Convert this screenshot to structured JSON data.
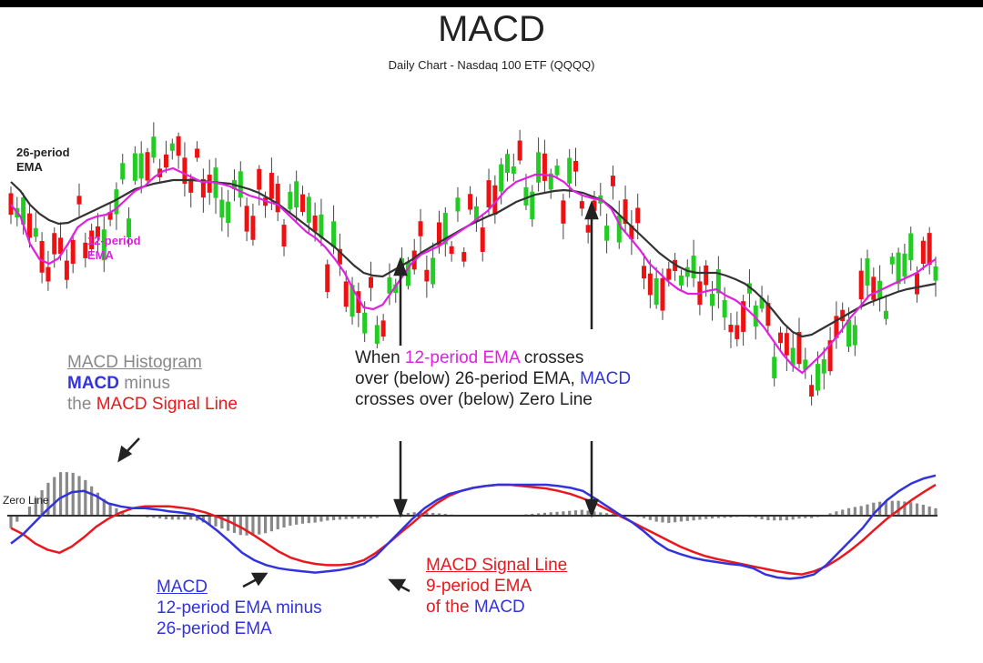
{
  "title": "MACD",
  "subtitle": "Daily Chart - Nasdaq 100 ETF (QQQQ)",
  "labels": {
    "ema26": [
      "26-period",
      "EMA"
    ],
    "ema12": [
      "12-period",
      "EMA"
    ],
    "zero_line": "Zero Line",
    "histogram_title": "MACD Histogram",
    "histogram_macd": "MACD",
    "histogram_minus": " minus",
    "histogram_the": "the ",
    "histogram_signal": "MACD Signal Line",
    "cross_when": "When ",
    "cross_12": "12-period EMA",
    "cross_rest1": " crosses",
    "cross_line2_a": "over (below) 26-period EMA,",
    "cross_line2_b": " MACD",
    "cross_line3": "crosses over (below) Zero Line",
    "macd_title": "MACD",
    "macd_line1": "12-period EMA minus",
    "macd_line2": "26-period EMA",
    "signal_title": "MACD Signal Line",
    "signal_line1": "9-period EMA",
    "signal_line2a": "of the ",
    "signal_line2b": "MACD"
  },
  "colors": {
    "up_candle": "#22cc22",
    "down_candle": "#ee1111",
    "ema12": "#e020e0",
    "ema26": "#333333",
    "macd": "#3333dd",
    "signal": "#e8181e",
    "histogram": "#888888"
  },
  "chart_data": [
    {
      "type": "candlestick",
      "series": [
        {
          "name": "12-period EMA",
          "y": [
            225,
            238,
            268,
            285,
            290,
            284,
            268,
            250,
            242,
            238,
            236,
            230,
            220,
            210,
            205,
            195,
            188,
            185,
            190,
            195,
            200,
            200,
            202,
            205,
            210,
            215,
            218,
            222,
            225,
            235,
            245,
            255,
            262,
            272,
            285,
            300,
            320,
            338,
            340,
            335,
            320,
            305,
            290,
            280,
            275,
            270,
            262,
            255,
            248,
            240,
            232,
            220,
            208,
            200,
            196,
            192,
            192,
            194,
            200,
            210,
            215,
            218,
            220,
            230,
            250,
            262,
            275,
            290,
            300,
            310,
            318,
            323,
            323,
            320,
            318,
            325,
            330,
            338,
            348,
            360,
            375,
            390,
            402,
            410,
            400,
            390,
            378,
            365,
            350,
            338,
            325,
            320,
            315,
            310,
            305,
            300,
            292,
            285
          ]
        },
        {
          "name": "26-period EMA",
          "y": [
            200,
            210,
            225,
            235,
            242,
            246,
            245,
            240,
            235,
            230,
            225,
            220,
            214,
            208,
            205,
            202,
            200,
            198,
            198,
            198,
            199,
            200,
            201,
            202,
            205,
            208,
            212,
            218,
            224,
            232,
            240,
            248,
            256,
            264,
            272,
            282,
            292,
            300,
            303,
            304,
            298,
            292,
            286,
            278,
            272,
            266,
            260,
            254,
            248,
            243,
            238,
            234,
            228,
            222,
            218,
            214,
            212,
            210,
            209,
            210,
            212,
            216,
            220,
            228,
            238,
            248,
            258,
            268,
            278,
            286,
            293,
            298,
            300,
            300,
            300,
            303,
            307,
            312,
            320,
            330,
            342,
            355,
            365,
            370,
            368,
            362,
            356,
            350,
            344,
            338,
            333,
            329,
            325,
            321,
            318,
            316,
            314,
            312
          ]
        }
      ],
      "ylim": [
        100,
        480
      ]
    },
    {
      "type": "line",
      "series": [
        {
          "name": "MACD",
          "y": [
            -45,
            -30,
            -10,
            10,
            28,
            38,
            40,
            32,
            20,
            15,
            12,
            12,
            10,
            7,
            5,
            2,
            -10,
            -25,
            -42,
            -60,
            -72,
            -80,
            -85,
            -88,
            -90,
            -92,
            -90,
            -88,
            -84,
            -78,
            -65,
            -45,
            -25,
            -5,
            12,
            25,
            35,
            40,
            45,
            48,
            50,
            50,
            50,
            50,
            50,
            48,
            45,
            40,
            28,
            15,
            2,
            -10,
            -25,
            -42,
            -55,
            -62,
            -68,
            -72,
            -75,
            -78,
            -80,
            -85,
            -95,
            -100,
            -102,
            -100,
            -95,
            -80,
            -60,
            -40,
            -20,
            5,
            25,
            40,
            52,
            60,
            65
          ]
        },
        {
          "name": "MACD Signal Line",
          "y": [
            -20,
            -30,
            -45,
            -55,
            -60,
            -50,
            -35,
            -18,
            -5,
            5,
            12,
            15,
            15,
            15,
            13,
            10,
            5,
            -2,
            -10,
            -20,
            -32,
            -45,
            -58,
            -68,
            -74,
            -78,
            -80,
            -80,
            -78,
            -72,
            -60,
            -45,
            -28,
            -12,
            5,
            20,
            32,
            40,
            45,
            48,
            50,
            50,
            48,
            46,
            44,
            40,
            35,
            28,
            20,
            10,
            0,
            -10,
            -20,
            -30,
            -40,
            -50,
            -58,
            -65,
            -70,
            -74,
            -78,
            -82,
            -86,
            -90,
            -93,
            -95,
            -90,
            -82,
            -70,
            -56,
            -40,
            -22,
            -5,
            10,
            25,
            38,
            50
          ]
        }
      ]
    }
  ]
}
